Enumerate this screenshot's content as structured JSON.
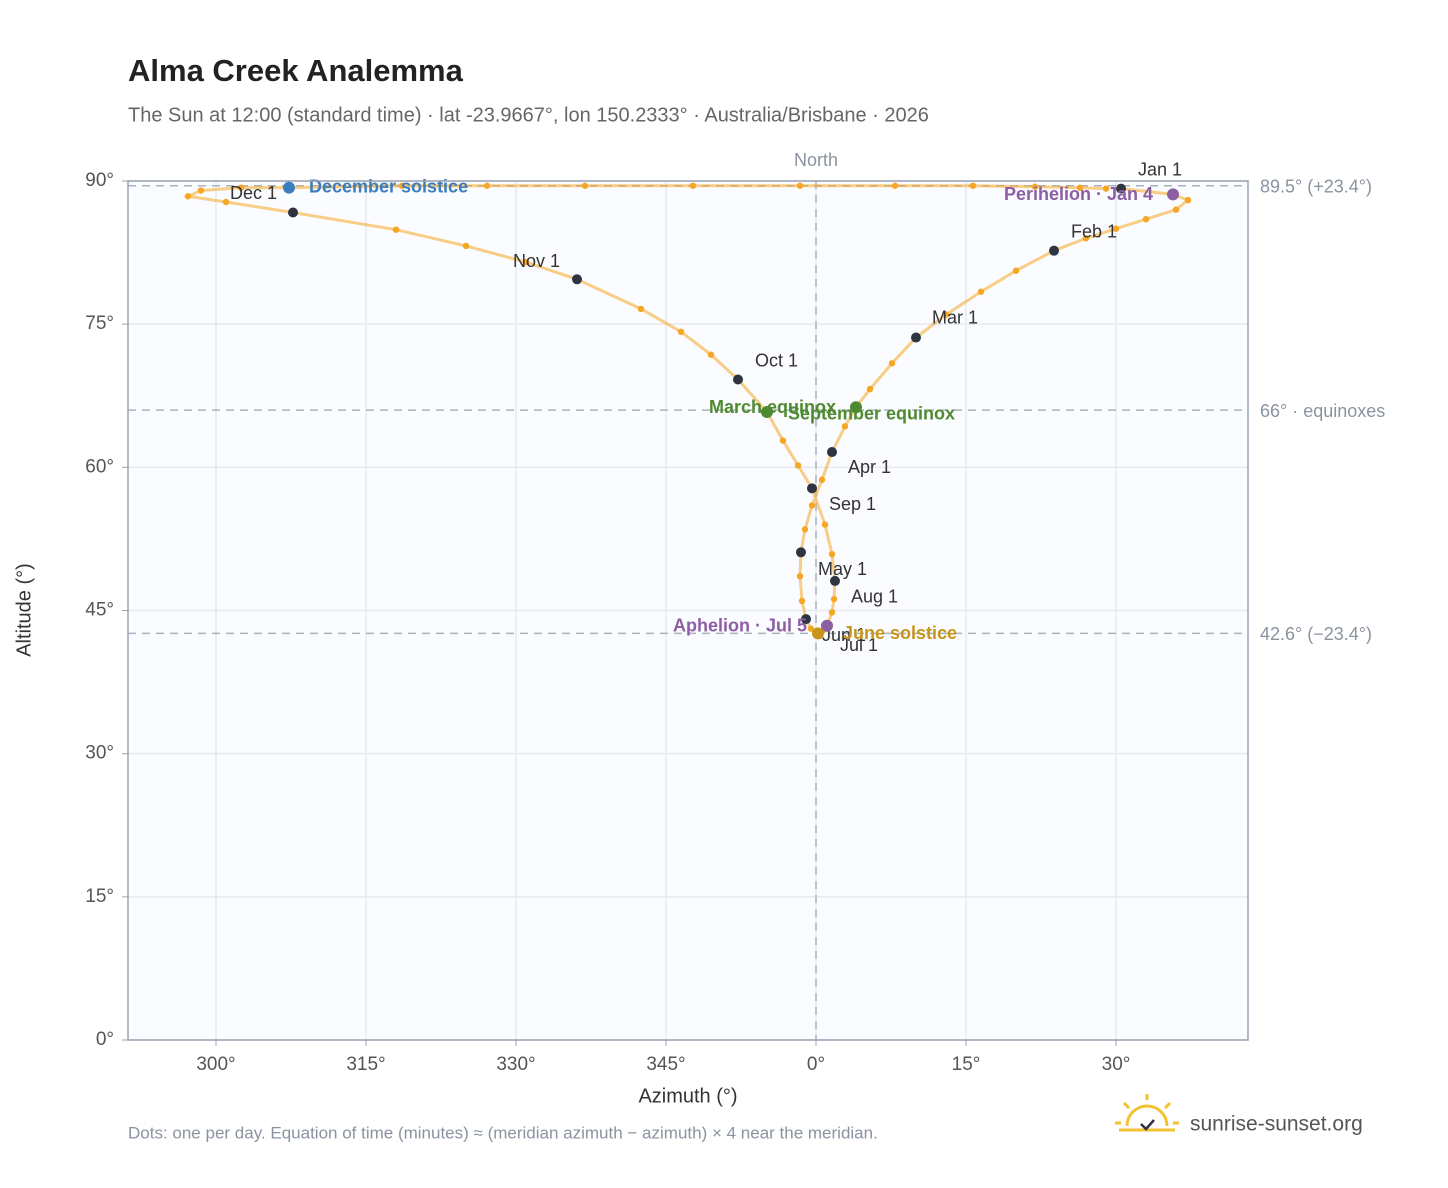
{
  "chart_data": {
    "type": "scatter",
    "title": "Alma Creek Analemma",
    "subtitle": "The Sun at 12:00 (standard time) · lat -23.9667°, lon 150.2333° · Australia/Brisbane · 2026",
    "x_label": "Azimuth (°)",
    "y_label": "Altitude (°)",
    "color": "#f5a623",
    "x": [
      30.5,
      35.7,
      37.2,
      36.0,
      33.0,
      30.0,
      27.0,
      23.8,
      20.0,
      16.5,
      13.0,
      10.0,
      7.6,
      5.4,
      4.0,
      2.9,
      1.6,
      0.6,
      -0.4,
      -1.1,
      -1.5,
      -1.6,
      -1.4,
      -1.0,
      -0.5,
      0.2,
      0.7,
      1.1,
      1.6,
      1.8,
      1.9,
      1.6,
      0.9,
      -0.4,
      -1.8,
      -3.3,
      -4.9,
      -7.8,
      -10.5,
      -13.5,
      -17.5,
      -23.9,
      -29.0,
      -35.0,
      -42.0,
      -52.3,
      -59.0,
      -62.8,
      -61.5,
      -57.5,
      -52.7,
      -41.4,
      -32.9,
      -23.1,
      -12.3,
      -1.6,
      7.9,
      15.7,
      21.9,
      26.4,
      29.0
    ],
    "values": [
      89.2,
      88.6,
      88.0,
      87.0,
      86.0,
      85.0,
      84.0,
      82.7,
      80.6,
      78.4,
      76.0,
      73.6,
      70.9,
      68.2,
      66.3,
      64.3,
      61.6,
      58.7,
      56.0,
      53.5,
      51.1,
      48.6,
      46.0,
      44.1,
      43.1,
      42.6,
      42.9,
      43.4,
      44.8,
      46.2,
      48.1,
      50.9,
      54.0,
      57.8,
      60.2,
      62.8,
      65.8,
      69.2,
      71.8,
      74.2,
      76.6,
      79.7,
      81.5,
      83.2,
      84.9,
      86.7,
      87.8,
      88.4,
      89.0,
      89.3,
      89.3,
      89.5,
      89.5,
      89.5,
      89.5,
      89.5,
      89.5,
      89.5,
      89.4,
      89.3,
      89.2
    ],
    "month_markers": {
      "color": "#2f3540",
      "labels": [
        "Jan 1",
        "Feb 1",
        "Mar 1",
        "Apr 1",
        "May 1",
        "Jun 1",
        "Jul 1",
        "Aug 1",
        "Sep 1",
        "Oct 1",
        "Nov 1",
        "Dec 1"
      ],
      "x": [
        30.5,
        23.8,
        10.0,
        1.6,
        -1.5,
        -1.0,
        0.2,
        1.9,
        -0.4,
        -7.8,
        -23.9,
        -52.3
      ],
      "values": [
        89.2,
        82.7,
        73.6,
        61.6,
        51.1,
        44.1,
        42.6,
        48.1,
        57.8,
        69.2,
        79.7,
        86.7
      ]
    },
    "events": [
      {
        "label": "December solstice",
        "x": -52.7,
        "value": 89.3,
        "color": "#3a7ebf"
      },
      {
        "label": "Perihelion · Jan 4",
        "x": 35.7,
        "value": 88.6,
        "color": "#8e5ea2"
      },
      {
        "label": "March equinox",
        "x": 4.0,
        "value": 66.3,
        "color": "#4e8a2f"
      },
      {
        "label": "September equinox",
        "x": -4.9,
        "value": 65.8,
        "color": "#4e8a2f"
      },
      {
        "label": "June solstice",
        "x": 0.2,
        "value": 42.6,
        "color": "#c8941a"
      },
      {
        "label": "Aphelion · Jul 5",
        "x": 1.1,
        "value": 43.4,
        "color": "#8e5ea2"
      }
    ],
    "reference_lines": [
      {
        "value": 89.5,
        "label": "89.5° (+23.4°)"
      },
      {
        "value": 66,
        "label": "66° · equinoxes"
      },
      {
        "value": 42.6,
        "label": "42.6° (−23.4°)"
      }
    ],
    "meridian": {
      "value": 0,
      "label": "North"
    },
    "xlim": [
      -68.8,
      43.2
    ],
    "ylim": [
      0,
      90
    ],
    "xticks": [
      {
        "value": -60,
        "label": "300°"
      },
      {
        "value": -45,
        "label": "315°"
      },
      {
        "value": -30,
        "label": "330°"
      },
      {
        "value": -15,
        "label": "345°"
      },
      {
        "value": 0,
        "label": "0°"
      },
      {
        "value": 15,
        "label": "15°"
      },
      {
        "value": 30,
        "label": "30°"
      }
    ],
    "yticks": [
      {
        "value": 0,
        "label": "0°"
      },
      {
        "value": 15,
        "label": "15°"
      },
      {
        "value": 30,
        "label": "30°"
      },
      {
        "value": 45,
        "label": "45°"
      },
      {
        "value": 60,
        "label": "60°"
      },
      {
        "value": 75,
        "label": "75°"
      },
      {
        "value": 90,
        "label": "90°"
      }
    ],
    "grid": true,
    "note": "Dots: one per day. Equation of time (minutes) ≈ (meridian azimuth − azimuth) × 4 near the meridian.",
    "brand": "sunrise-sunset.org"
  }
}
